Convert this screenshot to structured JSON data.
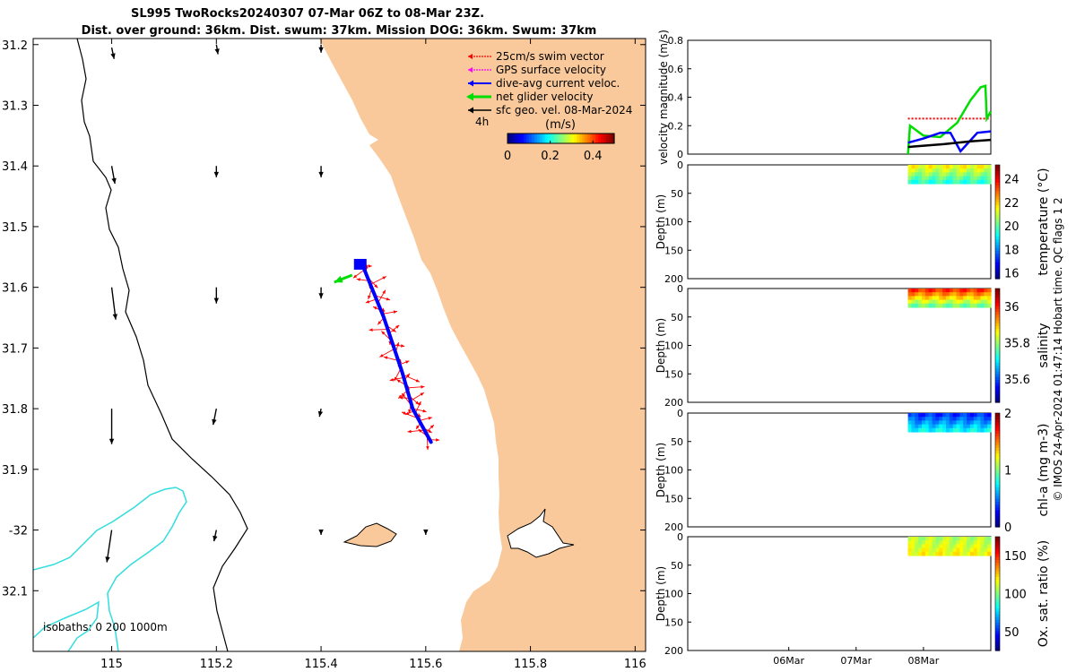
{
  "title": {
    "line1": "SL995 TwoRocks20240307 07-Mar 06Z to 08-Mar 23Z.",
    "line2": "Dist. over ground: 36km. Dist. swum: 37km. Mission DOG: 36km. Swum: 37km"
  },
  "credit": "© IMOS 24-Apr-2024 01:47:14 Hobart time. QC flags 1  2",
  "colors": {
    "land": "#f9c99b",
    "swim": "#ff0000",
    "gps": "#ff00ff",
    "dive_avg": "#0000ff",
    "net": "#00dd00",
    "geo": "#000000",
    "isobath_shallow": "#33dddd"
  },
  "chart_data": [
    {
      "id": "map",
      "type": "scatter",
      "title": "",
      "xlim": [
        114.85,
        116.02
      ],
      "ylim": [
        -32.2,
        -31.19
      ],
      "x_ticks": [
        115,
        115.2,
        115.4,
        115.6,
        115.8,
        116
      ],
      "x_tick_labels": [
        "115",
        "115.2",
        "115.4",
        "115.6",
        "115.8",
        "116"
      ],
      "y_ticks": [
        -31.2,
        -31.3,
        -31.4,
        -31.5,
        -31.6,
        -31.7,
        -31.8,
        -31.9,
        -32,
        -32.1
      ],
      "y_tick_labels": [
        "31.2",
        "31.3",
        "31.4",
        "31.5",
        "31.6",
        "31.7",
        "31.8",
        "31.9",
        "-32",
        "32.1"
      ],
      "legend": [
        {
          "label": "25cm/s swim vector",
          "color": "#ff0000"
        },
        {
          "label": "GPS surface velocity",
          "color": "#ff00ff"
        },
        {
          "label": "dive-avg current veloc.",
          "color": "#0000ff"
        },
        {
          "label": "net glider velocity",
          "color": "#00dd00"
        },
        {
          "label": "sfc geo. vel. 08-Mar-2024",
          "color": "#000000"
        }
      ],
      "legend_position": "top-right",
      "time_step_label": "4h",
      "colorbar": {
        "title": "(m/s)",
        "ticks": [
          "0",
          "0.2",
          "0.4"
        ],
        "range": [
          0,
          0.5
        ]
      },
      "isobaths_label": "isobaths: 0   200  1000m",
      "track": [
        [
          115.48,
          -31.565
        ],
        [
          115.52,
          -31.65
        ],
        [
          115.555,
          -31.74
        ],
        [
          115.575,
          -31.8
        ],
        [
          115.61,
          -31.855
        ]
      ],
      "geo_vectors": [
        {
          "lon": 115.0,
          "lat": -31.205,
          "u": 0.03,
          "v": -0.14
        },
        {
          "lon": 115.2,
          "lat": -31.2,
          "u": 0.02,
          "v": -0.12
        },
        {
          "lon": 115.4,
          "lat": -31.2,
          "u": 0.0,
          "v": -0.1
        },
        {
          "lon": 115.0,
          "lat": -31.4,
          "u": 0.04,
          "v": -0.22
        },
        {
          "lon": 115.2,
          "lat": -31.4,
          "u": 0.0,
          "v": -0.14
        },
        {
          "lon": 115.4,
          "lat": -31.4,
          "u": 0.0,
          "v": -0.14
        },
        {
          "lon": 115.0,
          "lat": -31.6,
          "u": 0.05,
          "v": -0.4
        },
        {
          "lon": 115.2,
          "lat": -31.6,
          "u": 0.0,
          "v": -0.2
        },
        {
          "lon": 115.4,
          "lat": -31.6,
          "u": 0.0,
          "v": -0.14
        },
        {
          "lon": 115.0,
          "lat": -31.8,
          "u": 0.0,
          "v": -0.44
        },
        {
          "lon": 115.2,
          "lat": -31.8,
          "u": -0.04,
          "v": -0.2
        },
        {
          "lon": 115.4,
          "lat": -31.8,
          "u": -0.02,
          "v": -0.1
        },
        {
          "lon": 115.0,
          "lat": -32.0,
          "u": -0.06,
          "v": -0.4
        },
        {
          "lon": 115.2,
          "lat": -32.0,
          "u": -0.03,
          "v": -0.14
        },
        {
          "lon": 115.4,
          "lat": -32.0,
          "u": 0.0,
          "v": -0.06
        },
        {
          "lon": 115.6,
          "lat": -32.0,
          "u": 0.0,
          "v": -0.06
        }
      ]
    },
    {
      "id": "velocity",
      "type": "line",
      "ylabel": "velocity magnitude (m/s)",
      "ylim": [
        0,
        0.8
      ],
      "y_ticks": [
        0,
        0.2,
        0.4,
        0.6,
        0.8
      ],
      "y_tick_labels": [
        "0",
        "0.2",
        "0.4",
        "0.6",
        "0.8"
      ],
      "xlim": [
        0,
        4.5
      ],
      "x_ticks": [
        1,
        2,
        3
      ],
      "series": [
        {
          "name": "swim",
          "color": "#ff0000",
          "x": [
            3.27,
            4.5
          ],
          "values": [
            0.25,
            0.25
          ]
        },
        {
          "name": "net glider velocity",
          "color": "#00dd00",
          "x": [
            3.27,
            3.3,
            3.5,
            3.75,
            4.0,
            4.2,
            4.35,
            4.42,
            4.44,
            4.5
          ],
          "values": [
            0.0,
            0.2,
            0.13,
            0.12,
            0.22,
            0.38,
            0.47,
            0.48,
            0.25,
            0.3
          ]
        },
        {
          "name": "dive-avg current veloc.",
          "color": "#0000ff",
          "x": [
            3.27,
            3.5,
            3.75,
            3.9,
            4.05,
            4.3,
            4.5
          ],
          "values": [
            0.08,
            0.11,
            0.15,
            0.15,
            0.02,
            0.15,
            0.16
          ]
        },
        {
          "name": "sfc geo. vel.",
          "color": "#000000",
          "x": [
            3.27,
            3.8,
            4.2,
            4.5
          ],
          "values": [
            0.05,
            0.07,
            0.09,
            0.1
          ]
        }
      ]
    },
    {
      "id": "temperature",
      "type": "heatmap",
      "ylabel": "Depth (m)",
      "cbar_label": "temperature (°C)",
      "ylim": [
        200,
        0
      ],
      "y_ticks": [
        0,
        50,
        100,
        150,
        200
      ],
      "y_tick_labels": [
        "0",
        "50",
        "100",
        "150",
        "200"
      ],
      "cbar_range": [
        15.5,
        25.2
      ],
      "cbar_ticks": [
        "16",
        "18",
        "20",
        "22",
        "24"
      ],
      "cbar_tick_values": [
        16,
        18,
        20,
        22,
        24
      ],
      "x_extent": [
        3.27,
        4.5
      ],
      "depth_max": 33,
      "surface_value": 21.5,
      "bottom_value": 19.6
    },
    {
      "id": "salinity",
      "type": "heatmap",
      "ylabel": "Depth (m)",
      "cbar_label": "salinity",
      "ylim": [
        200,
        0
      ],
      "y_ticks": [
        0,
        50,
        100,
        150,
        200
      ],
      "y_tick_labels": [
        "0",
        "50",
        "100",
        "150",
        "200"
      ],
      "cbar_range": [
        35.47,
        36.1
      ],
      "cbar_ticks": [
        "35.6",
        "35.8",
        "36"
      ],
      "cbar_tick_values": [
        35.6,
        35.8,
        36.0
      ],
      "x_extent": [
        3.27,
        4.5
      ],
      "depth_max": 33,
      "surface_value": 35.99,
      "bottom_value": 35.78
    },
    {
      "id": "chla",
      "type": "heatmap",
      "ylabel": "Depth (m)",
      "cbar_label": "chl-a (mg m-3)",
      "ylim": [
        200,
        0
      ],
      "y_ticks": [
        0,
        50,
        100,
        150,
        200
      ],
      "y_tick_labels": [
        "0",
        "50",
        "100",
        "150",
        "200"
      ],
      "cbar_range": [
        0,
        2
      ],
      "cbar_ticks": [
        "0",
        "1",
        "2"
      ],
      "cbar_tick_values": [
        0,
        1,
        2
      ],
      "x_extent": [
        3.27,
        4.5
      ],
      "depth_max": 33,
      "surface_value": 0.35,
      "bottom_value": 0.75
    },
    {
      "id": "oxygen",
      "type": "heatmap",
      "ylabel": "Depth (m)",
      "cbar_label": "Ox. sat. ratio (%)",
      "ylim": [
        200,
        0
      ],
      "y_ticks": [
        0,
        50,
        100,
        150,
        200
      ],
      "y_tick_labels": [
        "0",
        "50",
        "100",
        "150",
        "200"
      ],
      "cbar_range": [
        25,
        175
      ],
      "cbar_ticks": [
        "50",
        "100",
        "150"
      ],
      "cbar_tick_values": [
        50,
        100,
        150
      ],
      "x_extent": [
        3.27,
        4.5
      ],
      "depth_max": 33,
      "surface_value": 108,
      "bottom_value": 118,
      "x_tick_values": [
        1.5,
        2.5,
        3.5
      ],
      "x_tick_labels": [
        "06Mar",
        "07Mar",
        "08Mar"
      ]
    }
  ]
}
